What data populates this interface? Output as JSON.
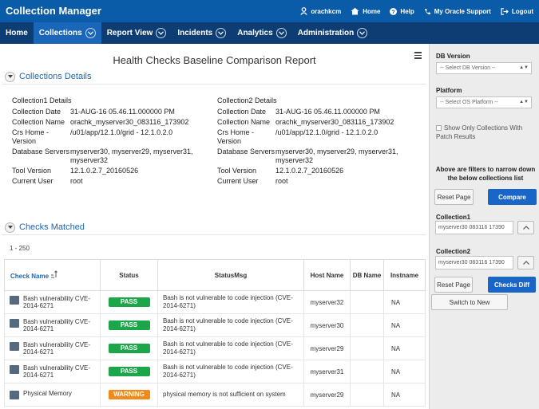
{
  "app": {
    "title": "Collection Manager"
  },
  "toplinks": [
    {
      "label": "orachkcm",
      "icon": "user-icon"
    },
    {
      "label": "Home",
      "icon": "home-icon"
    },
    {
      "label": "Help",
      "icon": "help-icon"
    },
    {
      "label": "My Oracle Support",
      "icon": "phone-icon"
    },
    {
      "label": "Logout",
      "icon": "logout-icon"
    }
  ],
  "nav": [
    {
      "label": "Home"
    },
    {
      "label": "Collections"
    },
    {
      "label": "Report View"
    },
    {
      "label": "Incidents"
    },
    {
      "label": "Analytics"
    },
    {
      "label": "Administration"
    }
  ],
  "report": {
    "title": "Health Checks Baseline Comparison Report"
  },
  "collections_region": {
    "title": "Collections Details"
  },
  "collection1": {
    "header": "Collection1 Details",
    "rows": [
      {
        "label": "Collection Date",
        "value": "31-AUG-16 05.46.11.000000 PM"
      },
      {
        "label": "Collection Name",
        "value": "orachk_myserver30_083116_173902"
      },
      {
        "label": "Crs Home - Version",
        "value": "/u01/app/12.1.0/grid - 12.1.0.2.0"
      },
      {
        "label": "Database Servers",
        "value": "myserver30, myserver29, myserver31, myserver32"
      },
      {
        "label": "Tool Version",
        "value": "12.1.0.2.7_20160526"
      },
      {
        "label": "Current User",
        "value": "root"
      }
    ]
  },
  "collection2": {
    "header": "Collection2 Details",
    "rows": [
      {
        "label": "Collection Date",
        "value": "31-AUG-16 05.46.11.000000 PM"
      },
      {
        "label": "Collection Name",
        "value": "orachk_myserver30_083116_173902"
      },
      {
        "label": "Crs Home - Version",
        "value": "/u01/app/12.1.0/grid - 12.1.0.2.0"
      },
      {
        "label": "Database Servers",
        "value": "myserver30, myserver29, myserver31, myserver32"
      },
      {
        "label": "Tool Version",
        "value": "12.1.0.2.7_20160526"
      },
      {
        "label": "Current User",
        "value": "root"
      }
    ]
  },
  "checks_region": {
    "title": "Checks Matched",
    "range": "1 - 250"
  },
  "table": {
    "headers": [
      "Check Name",
      "Status",
      "StatusMsg",
      "Host Name",
      "DB Name",
      "Instname"
    ],
    "rows": [
      {
        "check": "Bash vulnerability CVE-2014-6271",
        "status": "PASS",
        "msg": "Bash is not vulnerable to code injection (CVE-2014-6271)",
        "host": "myserver32",
        "db": "",
        "inst": "NA"
      },
      {
        "check": "Bash vulnerability CVE-2014-6271",
        "status": "PASS",
        "msg": "Bash is not vulnerable to code injection (CVE-2014-6271)",
        "host": "myserver30",
        "db": "",
        "inst": "NA"
      },
      {
        "check": "Bash vulnerability CVE-2014-6271",
        "status": "PASS",
        "msg": "Bash is not vulnerable to code injection (CVE-2014-6271)",
        "host": "myserver29",
        "db": "",
        "inst": "NA"
      },
      {
        "check": "Bash vulnerability CVE-2014-6271",
        "status": "PASS",
        "msg": "Bash is not vulnerable to code injection (CVE-2014-6271)",
        "host": "myserver31",
        "db": "",
        "inst": "NA"
      },
      {
        "check": "Physical Memory",
        "status": "WARNING",
        "msg": "physical memory is not sufficient on system",
        "host": "myserver29",
        "db": "",
        "inst": "NA"
      }
    ]
  },
  "sidebar": {
    "db_version_label": "DB Version",
    "db_version_value": "-- Select DB Version --",
    "platform_label": "Platform",
    "platform_value": "-- Select OS Platform --",
    "patch_checkbox": "Show Only Collections With Patch Results",
    "filter_note": "Above are filters to narrow down the below collections list",
    "reset_label": "Reset Page",
    "compare_label": "Compare",
    "collection1_label": "Collection1",
    "collection1_value": "myserver30 083116 17390",
    "collection2_label": "Collection2",
    "collection2_value": "myserver30 083116 17390",
    "reset2_label": "Reset Page",
    "checks_diff_label": "Checks Diff",
    "switch_label": "Switch to New"
  },
  "colors": {
    "topbar": "#0a5ca8",
    "navbar": "#0d3d73",
    "pass": "#1ca64a",
    "warning": "#f08a1c",
    "link": "#1f66b3"
  }
}
